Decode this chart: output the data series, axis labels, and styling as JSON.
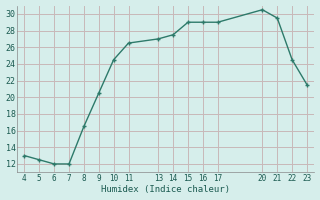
{
  "x": [
    4,
    5,
    6,
    7,
    8,
    9,
    10,
    11,
    13,
    14,
    15,
    16,
    17,
    20,
    21,
    22,
    23
  ],
  "y": [
    13.0,
    12.5,
    12.0,
    12.0,
    16.5,
    20.5,
    24.5,
    26.5,
    27.0,
    27.5,
    29.0,
    29.0,
    29.0,
    30.5,
    29.5,
    24.5,
    21.5
  ],
  "xlim": [
    3.5,
    23.5
  ],
  "ylim": [
    11,
    31
  ],
  "xticks": [
    4,
    5,
    6,
    7,
    8,
    9,
    10,
    11,
    13,
    14,
    15,
    16,
    17,
    20,
    21,
    22,
    23
  ],
  "yticks": [
    12,
    14,
    16,
    18,
    20,
    22,
    24,
    26,
    28,
    30
  ],
  "xlabel": "Humidex (Indice chaleur)",
  "line_color": "#2d7a6a",
  "marker_color": "#2d7a6a",
  "bg_color": "#d6eeeb",
  "grid_color_major": "#c8b8b8",
  "grid_color_minor": "#c8b8b8",
  "tick_color": "#1a5a50",
  "label_color": "#1a5a50"
}
